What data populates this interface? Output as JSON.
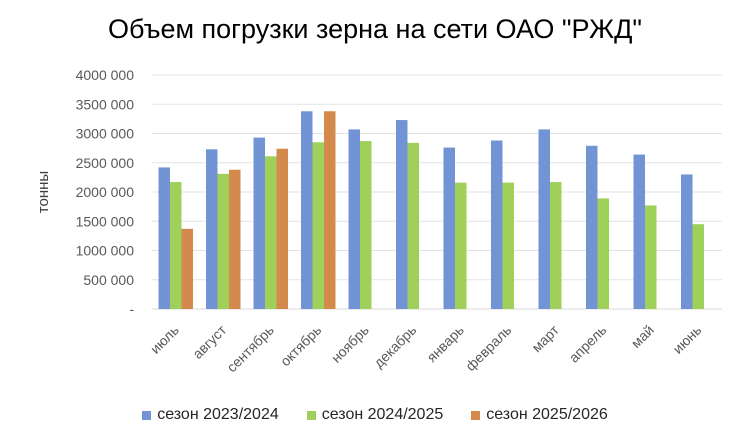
{
  "chart_data": {
    "type": "bar",
    "title": "Объем погрузки зерна на сети ОАО \"РЖД\"",
    "ylabel": "тонны",
    "xlabel": "",
    "ylim": [
      0,
      4000000
    ],
    "yticks": [
      0,
      500000,
      1000000,
      1500000,
      2000000,
      2500000,
      3000000,
      3500000,
      4000000
    ],
    "ytick_labels": [
      "-",
      "500 000",
      "1000 000",
      "1500 000",
      "2000 000",
      "2500 000",
      "3000 000",
      "3500 000",
      "4000 000"
    ],
    "grid": true,
    "legend_position": "bottom",
    "categories": [
      "июль",
      "август",
      "сентябрь",
      "октябрь",
      "ноябрь",
      "декабрь",
      "январь",
      "февраль",
      "март",
      "апрель",
      "май",
      "июнь"
    ],
    "series": [
      {
        "name": "сезон 2023/2024",
        "color": "#7394d4",
        "values": [
          2420000,
          2730000,
          2930000,
          3380000,
          3070000,
          3230000,
          2760000,
          2880000,
          3070000,
          2790000,
          2640000,
          2300000
        ]
      },
      {
        "name": "сезон 2024/2025",
        "color": "#9fd05a",
        "values": [
          2170000,
          2310000,
          2610000,
          2850000,
          2870000,
          2840000,
          2160000,
          2160000,
          2170000,
          1890000,
          1770000,
          1450000
        ]
      },
      {
        "name": "сезон 2025/2026",
        "color": "#d48a4c",
        "values": [
          1370000,
          2380000,
          2740000,
          3380000,
          null,
          null,
          null,
          null,
          null,
          null,
          null,
          null
        ]
      }
    ]
  }
}
